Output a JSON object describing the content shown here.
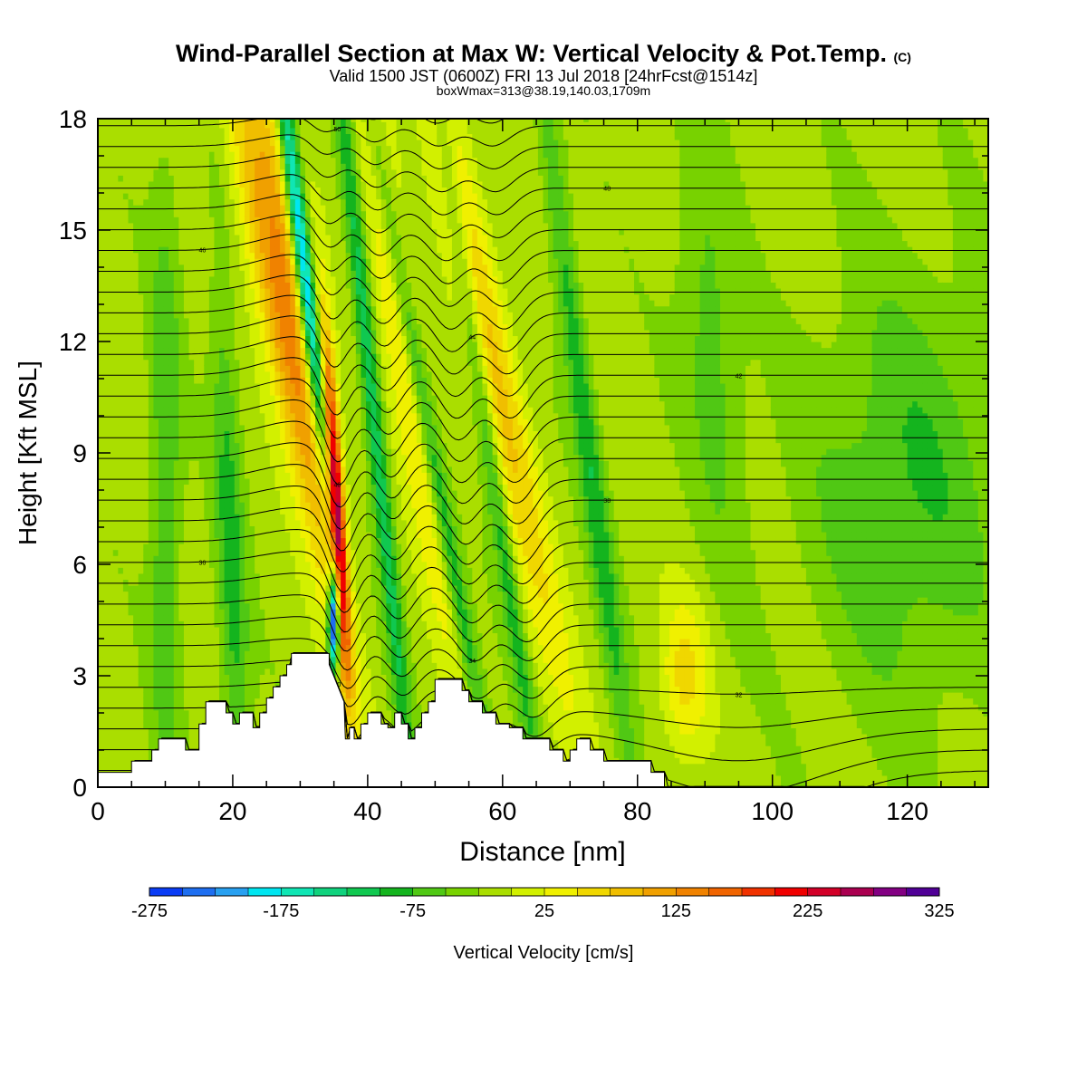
{
  "title": "Wind-Parallel Section at Max W: Vertical Velocity & Pot.Temp.",
  "title_mark": "(C)",
  "subtitle": "Valid 1500 JST (0600Z) FRI 13 Jul 2018 [24hrFcst@1514z]",
  "subtitle2": "boxWmax=313@38.19,140.03,1709m",
  "chart_data": {
    "type": "heatmap",
    "xlabel": "Distance [nm]",
    "ylabel": "Height [Kft MSL]",
    "xlim": [
      0,
      132
    ],
    "ylim": [
      0,
      18
    ],
    "x_ticks": [
      0,
      20,
      40,
      60,
      80,
      100,
      120
    ],
    "y_ticks": [
      0,
      3,
      6,
      9,
      12,
      15,
      18
    ],
    "colorbar": {
      "label": "Vertical Velocity [cm/s]",
      "ticks": [
        -275,
        -175,
        -75,
        25,
        125,
        225,
        325
      ],
      "levels": [
        -275,
        -250,
        -225,
        -200,
        -175,
        -150,
        -125,
        -100,
        -75,
        -50,
        -25,
        0,
        25,
        50,
        75,
        100,
        125,
        150,
        175,
        200,
        225,
        250,
        275,
        300,
        325
      ],
      "colors": [
        "#0000ff",
        "#0a3cf5",
        "#1e6ef0",
        "#28a0f0",
        "#00e6f0",
        "#10e6b4",
        "#10d27d",
        "#10c850",
        "#14b41e",
        "#50c814",
        "#78d200",
        "#aade00",
        "#d2f000",
        "#f0f000",
        "#f0d700",
        "#f0be00",
        "#f0a000",
        "#f08200",
        "#f06400",
        "#f03200",
        "#f00000",
        "#d20028",
        "#aa0050",
        "#820082",
        "#500096"
      ]
    },
    "terrain_kft": [
      [
        0,
        0.4
      ],
      [
        5,
        0.4
      ],
      [
        5,
        0.7
      ],
      [
        8,
        0.7
      ],
      [
        8,
        1.0
      ],
      [
        9,
        1.0
      ],
      [
        9,
        1.3
      ],
      [
        13,
        1.3
      ],
      [
        13,
        1.0
      ],
      [
        15,
        1.0
      ],
      [
        15,
        1.7
      ],
      [
        16,
        1.7
      ],
      [
        16,
        2.3
      ],
      [
        19,
        2.3
      ],
      [
        19,
        2.0
      ],
      [
        20,
        2.0
      ],
      [
        20,
        1.7
      ],
      [
        21,
        1.7
      ],
      [
        21,
        2.0
      ],
      [
        23,
        2.0
      ],
      [
        23,
        1.6
      ],
      [
        24,
        1.6
      ],
      [
        24,
        2.0
      ],
      [
        25,
        2.0
      ],
      [
        25,
        2.4
      ],
      [
        26,
        2.4
      ],
      [
        26,
        2.7
      ],
      [
        27,
        2.7
      ],
      [
        27,
        3.0
      ],
      [
        28,
        3.0
      ],
      [
        28,
        3.3
      ],
      [
        28.7,
        3.3
      ],
      [
        28.7,
        3.6
      ],
      [
        34.3,
        3.6
      ],
      [
        34.3,
        3.3
      ],
      [
        36.5,
        2.3
      ],
      [
        36.5,
        2.3
      ],
      [
        36.7,
        1.3
      ],
      [
        37.3,
        1.3
      ],
      [
        37.3,
        1.6
      ],
      [
        38,
        1.6
      ],
      [
        38,
        1.3
      ],
      [
        39,
        1.3
      ],
      [
        39,
        1.7
      ],
      [
        40,
        1.7
      ],
      [
        40,
        2.0
      ],
      [
        42,
        2.0
      ],
      [
        42,
        1.7
      ],
      [
        43,
        1.7
      ],
      [
        43,
        1.6
      ],
      [
        44,
        1.6
      ],
      [
        44,
        2.0
      ],
      [
        45,
        2.0
      ],
      [
        45,
        1.7
      ],
      [
        46,
        1.7
      ],
      [
        46,
        1.3
      ],
      [
        47,
        1.3
      ],
      [
        47,
        1.6
      ],
      [
        48,
        1.6
      ],
      [
        48,
        2.0
      ],
      [
        49,
        2.0
      ],
      [
        49,
        2.3
      ],
      [
        50,
        2.3
      ],
      [
        50,
        2.9
      ],
      [
        54,
        2.9
      ],
      [
        54,
        2.6
      ],
      [
        55,
        2.6
      ],
      [
        55,
        2.3
      ],
      [
        57,
        2.3
      ],
      [
        57,
        2.0
      ],
      [
        59,
        2.0
      ],
      [
        59,
        1.7
      ],
      [
        61,
        1.7
      ],
      [
        61,
        1.6
      ],
      [
        63,
        1.6
      ],
      [
        63,
        1.3
      ],
      [
        67,
        1.3
      ],
      [
        67,
        1.0
      ],
      [
        69,
        1.0
      ],
      [
        69,
        0.7
      ],
      [
        70,
        0.7
      ],
      [
        70,
        1.0
      ],
      [
        71,
        1.0
      ],
      [
        71,
        1.3
      ],
      [
        73,
        1.3
      ],
      [
        73,
        1.0
      ],
      [
        75,
        1.0
      ],
      [
        75,
        0.7
      ],
      [
        82,
        0.7
      ],
      [
        82,
        0.4
      ],
      [
        84,
        0.4
      ],
      [
        84,
        0
      ],
      [
        132,
        0
      ]
    ],
    "theta_contour_labels": [
      "30",
      "32",
      "34",
      "36",
      "38",
      "40",
      "42",
      "44",
      "46",
      "48",
      "50",
      "52"
    ],
    "grid": false
  }
}
